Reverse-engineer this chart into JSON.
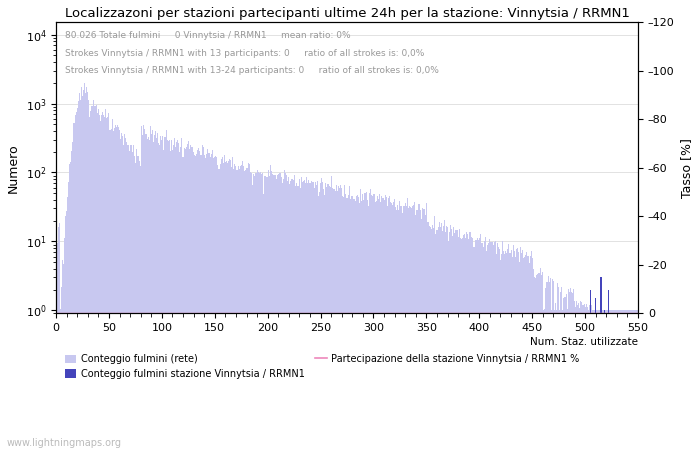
{
  "title": "Localizzazoni per stazioni partecipanti ultime 24h per la stazione: Vinnytsia / RRMN1",
  "annotation_line1": "80.026 Totale fulmini     0 Vinnytsia / RRMN1     mean ratio: 0%",
  "annotation_line2": "Strokes Vinnytsia / RRMN1 with 13 participants: 0     ratio of all strokes is: 0,0%",
  "annotation_line3": "Strokes Vinnytsia / RRMN1 with 13-24 participants: 0     ratio of all strokes is: 0,0%",
  "ylabel_left": "Numero",
  "ylabel_right": "Tasso [%]",
  "xlabel": "Num. Staz. utilizzate",
  "xlim": [
    0,
    550
  ],
  "ylim_right": [
    0,
    120
  ],
  "bar_color_light": "#c8c8f0",
  "bar_color_dark": "#4444bb",
  "line_color": "#ee88bb",
  "watermark": "www.lightningmaps.org",
  "legend1": "Conteggio fulmini (rete)",
  "legend2": "Conteggio fulmini stazione Vinnytsia / RRMN1",
  "legend3": "Partecipazione della stazione Vinnytsia / RRMN1 %",
  "x_ticks": [
    0,
    50,
    100,
    150,
    200,
    250,
    300,
    350,
    400,
    450,
    500,
    550
  ],
  "y_right_ticks": [
    0,
    20,
    40,
    60,
    80,
    100,
    120
  ],
  "y_right_labels": [
    "0",
    "–20",
    "–40",
    "–60",
    "–80",
    "–100",
    "–120"
  ]
}
